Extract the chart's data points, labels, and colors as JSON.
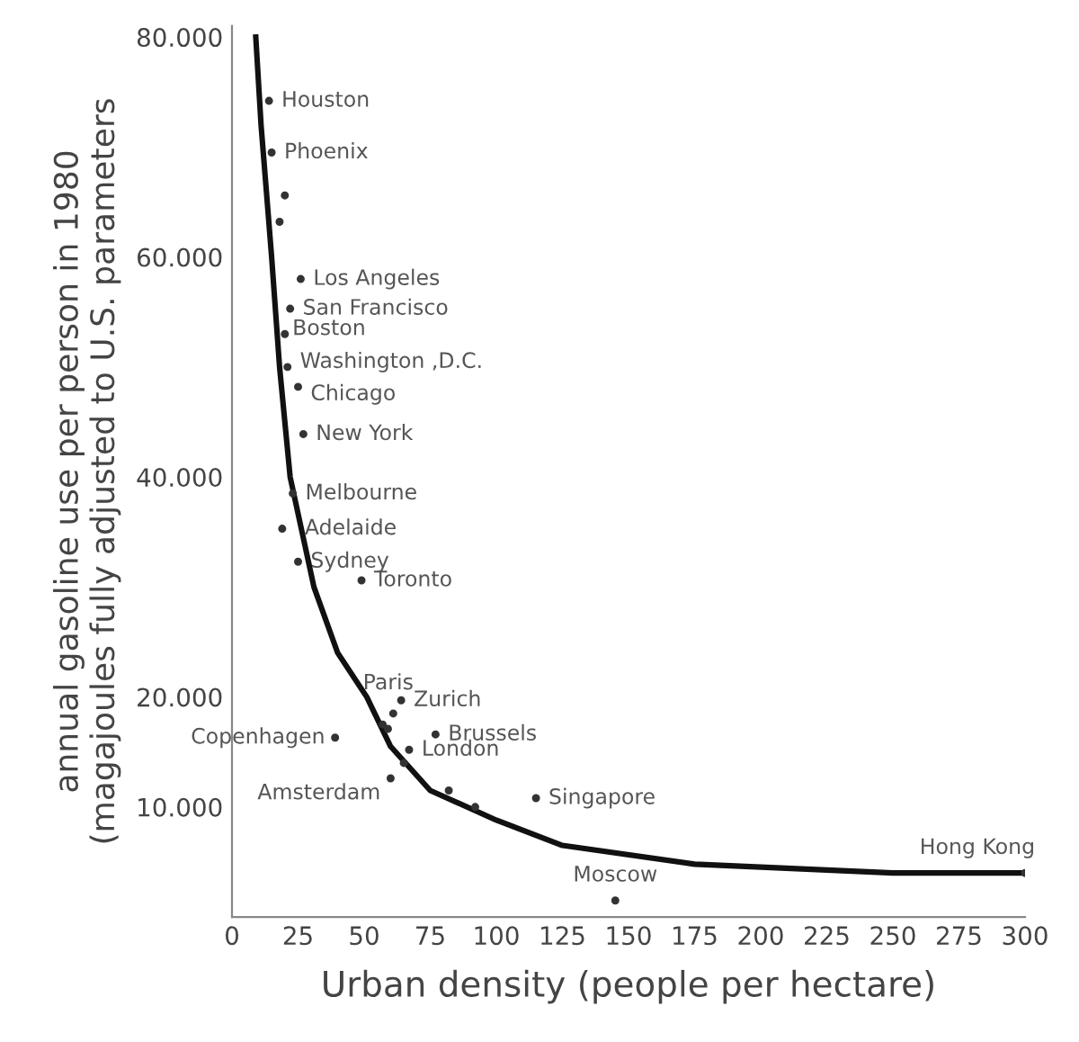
{
  "chart_data": {
    "type": "scatter",
    "xlabel": "Urban density (people per hectare)",
    "ylabel": "annual gasoline use per person in 1980\n(magajoules fully adjusted to U.S. parameters",
    "xlim": [
      0,
      300
    ],
    "ylim": [
      0,
      81000
    ],
    "xticks": [
      0,
      25,
      50,
      75,
      100,
      125,
      150,
      175,
      200,
      225,
      250,
      275,
      300
    ],
    "yticks": [
      {
        "value": 10000,
        "label": "10.000"
      },
      {
        "value": 20000,
        "label": "20.000"
      },
      {
        "value": 40000,
        "label": "40.000"
      },
      {
        "value": 60000,
        "label": "60.000"
      },
      {
        "value": 80000,
        "label": "80.000"
      }
    ],
    "grid": false,
    "legend": false,
    "marker": "circle",
    "series": [
      {
        "color": "#333333",
        "x": [
          14,
          15,
          20,
          18,
          26,
          22,
          20,
          21,
          25,
          27,
          23,
          19,
          25,
          49,
          64,
          61,
          57,
          59,
          39,
          77,
          67,
          65,
          60,
          82,
          92,
          115,
          145,
          300
        ],
        "values": [
          74200,
          69500,
          65600,
          63200,
          58000,
          55300,
          53000,
          50000,
          48200,
          43900,
          38500,
          35300,
          32300,
          30600,
          19700,
          18500,
          17500,
          17100,
          16300,
          16600,
          15200,
          14000,
          12600,
          11500,
          10000,
          10800,
          1500,
          4000
        ],
        "value_labels": [
          "Houston",
          "Phoenix",
          null,
          null,
          "Los Angeles",
          "San Francisco",
          "Boston",
          "Washington ,D.C.",
          "Chicago",
          "New York",
          "Melbourne",
          "Adelaide",
          "Sydney",
          "Toronto",
          "Zurich",
          "Paris",
          null,
          null,
          "Copenhagen",
          "Brussels",
          "London",
          null,
          "Amsterdam",
          null,
          null,
          "Singapore",
          "Moscow",
          "Hong Kong"
        ]
      },
      {
        "type": "line",
        "color": "#111111",
        "marker": "none",
        "x": [
          9,
          11,
          13,
          15,
          18,
          22,
          31,
          40,
          51,
          60,
          75,
          100,
          125,
          175,
          250,
          300
        ],
        "values": [
          80000,
          72000,
          66000,
          60000,
          50000,
          40000,
          30000,
          24000,
          20000,
          15500,
          11500,
          8800,
          6500,
          4800,
          4000,
          4000
        ]
      }
    ]
  }
}
